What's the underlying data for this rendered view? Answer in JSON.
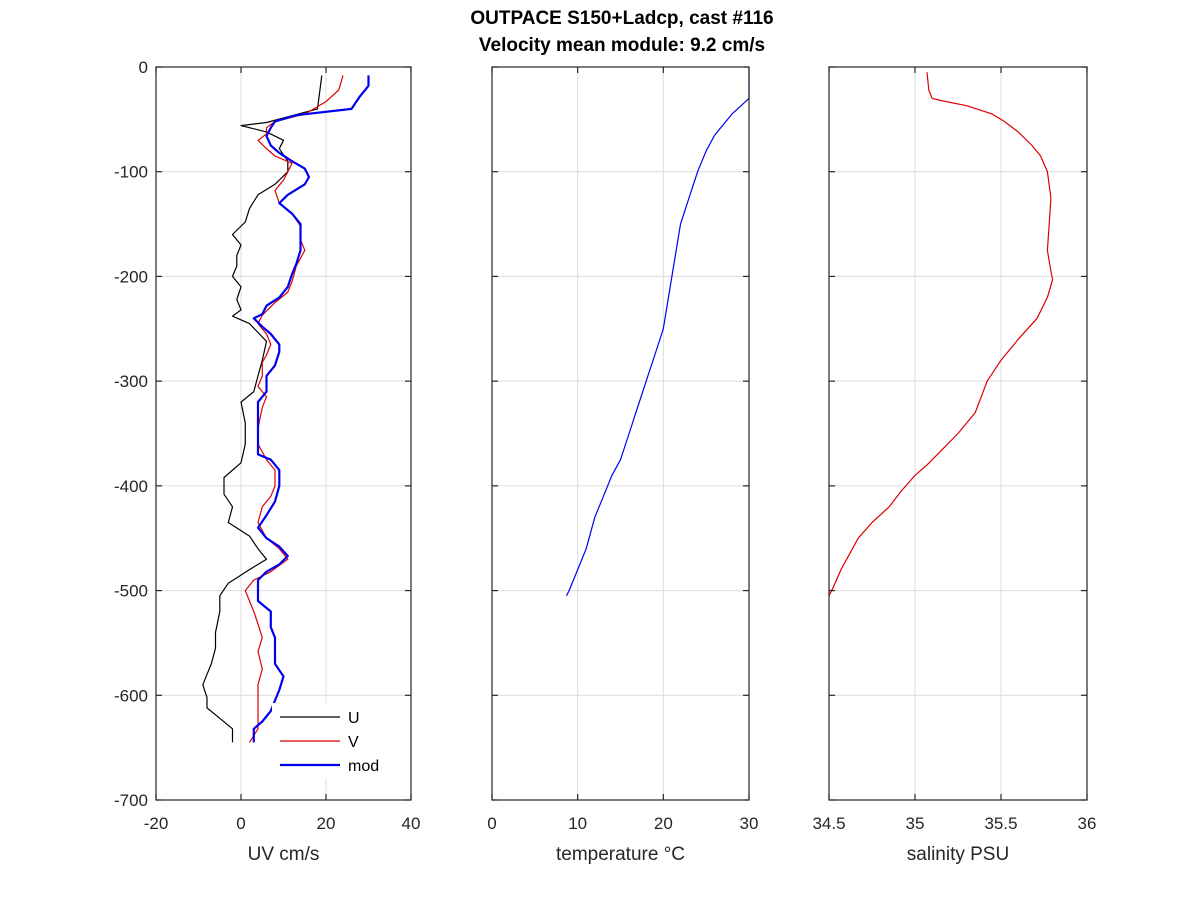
{
  "figure": {
    "title_line1": "OUTPACE S150+Ladcp, cast #116",
    "title_line2": "Velocity mean module:  9.2 cm/s"
  },
  "chart_data": [
    {
      "type": "line",
      "id": "uv",
      "xlabel": "UV cm/s",
      "ylabel": "",
      "xlim": [
        -20,
        40
      ],
      "ylim": [
        -700,
        0
      ],
      "xticks": [
        -20,
        0,
        20,
        40
      ],
      "yticks": [
        0,
        -100,
        -200,
        -300,
        -400,
        -500,
        -600,
        -700
      ],
      "show_ytick_labels": true,
      "grid": true,
      "legend": {
        "placement": "bottom-right",
        "entries": [
          "U",
          "V",
          "mod"
        ]
      },
      "series": [
        {
          "name": "U",
          "color": "#000000",
          "width": 1.2,
          "points": [
            [
              19,
              -8
            ],
            [
              18,
              -40
            ],
            [
              6,
              -53
            ],
            [
              0,
              -56
            ],
            [
              6,
              -62
            ],
            [
              10,
              -70
            ],
            [
              9,
              -78
            ],
            [
              11,
              -90
            ],
            [
              11,
              -100
            ],
            [
              8,
              -112
            ],
            [
              4,
              -122
            ],
            [
              2,
              -135
            ],
            [
              1,
              -148
            ],
            [
              -2,
              -160
            ],
            [
              0,
              -170
            ],
            [
              -1,
              -180
            ],
            [
              -1,
              -190
            ],
            [
              -2,
              -200
            ],
            [
              0,
              -210
            ],
            [
              -1,
              -222
            ],
            [
              0,
              -232
            ],
            [
              -2,
              -238
            ],
            [
              2,
              -245
            ],
            [
              6,
              -262
            ],
            [
              5,
              -280
            ],
            [
              4,
              -295
            ],
            [
              3,
              -310
            ],
            [
              0,
              -320
            ],
            [
              1,
              -340
            ],
            [
              1,
              -360
            ],
            [
              0,
              -378
            ],
            [
              -4,
              -392
            ],
            [
              -4,
              -408
            ],
            [
              -2,
              -420
            ],
            [
              -3,
              -435
            ],
            [
              2,
              -448
            ],
            [
              4,
              -460
            ],
            [
              6,
              -470
            ],
            [
              2,
              -480
            ],
            [
              -3,
              -493
            ],
            [
              -5,
              -505
            ],
            [
              -5,
              -520
            ],
            [
              -6,
              -540
            ],
            [
              -6,
              -555
            ],
            [
              -7,
              -570
            ],
            [
              -8,
              -580
            ],
            [
              -9,
              -590
            ],
            [
              -8,
              -602
            ],
            [
              -8,
              -612
            ],
            [
              -5,
              -622
            ],
            [
              -2,
              -632
            ],
            [
              -2,
              -645
            ]
          ]
        },
        {
          "name": "V",
          "color": "#dd0000",
          "width": 1.2,
          "points": [
            [
              24,
              -8
            ],
            [
              23,
              -22
            ],
            [
              20,
              -33
            ],
            [
              15,
              -45
            ],
            [
              8,
              -52
            ],
            [
              6,
              -58
            ],
            [
              6,
              -64
            ],
            [
              4,
              -70
            ],
            [
              6,
              -78
            ],
            [
              8,
              -85
            ],
            [
              12,
              -92
            ],
            [
              11,
              -100
            ],
            [
              10,
              -108
            ],
            [
              8,
              -118
            ],
            [
              9,
              -130
            ],
            [
              12,
              -140
            ],
            [
              14,
              -152
            ],
            [
              14,
              -165
            ],
            [
              15,
              -175
            ],
            [
              13,
              -190
            ],
            [
              12,
              -205
            ],
            [
              11,
              -215
            ],
            [
              8,
              -225
            ],
            [
              5,
              -237
            ],
            [
              4,
              -245
            ],
            [
              6,
              -255
            ],
            [
              7,
              -265
            ],
            [
              6,
              -275
            ],
            [
              5,
              -282
            ],
            [
              5,
              -295
            ],
            [
              4,
              -305
            ],
            [
              6,
              -315
            ],
            [
              5,
              -325
            ],
            [
              4,
              -345
            ],
            [
              4,
              -360
            ],
            [
              6,
              -375
            ],
            [
              8,
              -385
            ],
            [
              8,
              -400
            ],
            [
              7,
              -410
            ],
            [
              5,
              -420
            ],
            [
              4,
              -435
            ],
            [
              6,
              -450
            ],
            [
              9,
              -460
            ],
            [
              11,
              -470
            ],
            [
              7,
              -482
            ],
            [
              3,
              -490
            ],
            [
              1,
              -500
            ],
            [
              2,
              -510
            ],
            [
              3,
              -520
            ],
            [
              4,
              -532
            ],
            [
              5,
              -545
            ],
            [
              4,
              -558
            ],
            [
              5,
              -575
            ],
            [
              4,
              -590
            ],
            [
              4,
              -605
            ],
            [
              4,
              -620
            ],
            [
              4,
              -632
            ],
            [
              2,
              -645
            ]
          ]
        },
        {
          "name": "mod",
          "color": "#0000ee",
          "width": 2.2,
          "points": [
            [
              30,
              -8
            ],
            [
              30,
              -18
            ],
            [
              28,
              -28
            ],
            [
              26,
              -40
            ],
            [
              13,
              -46
            ],
            [
              8,
              -52
            ],
            [
              7,
              -58
            ],
            [
              6,
              -66
            ],
            [
              7,
              -75
            ],
            [
              9,
              -82
            ],
            [
              12,
              -90
            ],
            [
              15,
              -97
            ],
            [
              16,
              -105
            ],
            [
              15,
              -112
            ],
            [
              11,
              -122
            ],
            [
              9,
              -130
            ],
            [
              12,
              -140
            ],
            [
              14,
              -150
            ],
            [
              14,
              -160
            ],
            [
              14,
              -175
            ],
            [
              13,
              -188
            ],
            [
              12,
              -198
            ],
            [
              11,
              -210
            ],
            [
              9,
              -220
            ],
            [
              6,
              -228
            ],
            [
              5,
              -236
            ],
            [
              3,
              -240
            ],
            [
              5,
              -248
            ],
            [
              7,
              -255
            ],
            [
              9,
              -265
            ],
            [
              9,
              -272
            ],
            [
              8,
              -285
            ],
            [
              6,
              -295
            ],
            [
              6,
              -310
            ],
            [
              4,
              -320
            ],
            [
              4,
              -330
            ],
            [
              4,
              -350
            ],
            [
              4,
              -370
            ],
            [
              7,
              -375
            ],
            [
              9,
              -385
            ],
            [
              9,
              -400
            ],
            [
              8,
              -415
            ],
            [
              6,
              -428
            ],
            [
              4,
              -440
            ],
            [
              6,
              -450
            ],
            [
              9,
              -458
            ],
            [
              11,
              -467
            ],
            [
              9,
              -475
            ],
            [
              6,
              -482
            ],
            [
              4,
              -490
            ],
            [
              4,
              -500
            ],
            [
              4,
              -510
            ],
            [
              7,
              -520
            ],
            [
              7,
              -535
            ],
            [
              8,
              -545
            ],
            [
              8,
              -555
            ],
            [
              8,
              -570
            ],
            [
              10,
              -582
            ],
            [
              9,
              -595
            ],
            [
              8,
              -605
            ],
            [
              7,
              -615
            ],
            [
              5,
              -625
            ],
            [
              3,
              -632
            ],
            [
              3,
              -645
            ]
          ]
        }
      ]
    },
    {
      "type": "line",
      "id": "temperature",
      "xlabel": "temperature °C",
      "ylabel": "",
      "xlim": [
        0,
        30
      ],
      "ylim": [
        -700,
        0
      ],
      "xticks": [
        0,
        10,
        20,
        30
      ],
      "yticks": [
        0,
        -100,
        -200,
        -300,
        -400,
        -500,
        -600,
        -700
      ],
      "show_ytick_labels": false,
      "grid": true,
      "series": [
        {
          "color": "#0000ee",
          "width": 1.2,
          "points": [
            [
              30,
              -5
            ],
            [
              30,
              -30
            ],
            [
              28,
              -45
            ],
            [
              27,
              -55
            ],
            [
              26,
              -65
            ],
            [
              25,
              -80
            ],
            [
              24,
              -100
            ],
            [
              23,
              -125
            ],
            [
              22,
              -150
            ],
            [
              21.5,
              -175
            ],
            [
              21,
              -200
            ],
            [
              20.5,
              -225
            ],
            [
              20,
              -250
            ],
            [
              19,
              -275
            ],
            [
              18,
              -300
            ],
            [
              17,
              -325
            ],
            [
              16,
              -350
            ],
            [
              15,
              -375
            ],
            [
              14,
              -390
            ],
            [
              13,
              -410
            ],
            [
              12,
              -430
            ],
            [
              11,
              -460
            ],
            [
              10,
              -480
            ],
            [
              9.5,
              -490
            ],
            [
              9,
              -500
            ],
            [
              8.7,
              -505
            ]
          ]
        }
      ]
    },
    {
      "type": "line",
      "id": "salinity",
      "xlabel": "salinity PSU",
      "ylabel": "",
      "xlim": [
        34.5,
        36
      ],
      "ylim": [
        -700,
        0
      ],
      "xticks": [
        34.5,
        35,
        35.5,
        36
      ],
      "xtick_labels": [
        "34.5",
        "35",
        "35.5",
        "36"
      ],
      "yticks": [
        0,
        -100,
        -200,
        -300,
        -400,
        -500,
        -600,
        -700
      ],
      "show_ytick_labels": false,
      "grid": true,
      "series": [
        {
          "color": "#dd0000",
          "width": 1.2,
          "points": [
            [
              35.07,
              -5
            ],
            [
              35.08,
              -22
            ],
            [
              35.1,
              -30
            ],
            [
              35.15,
              -32
            ],
            [
              35.3,
              -37
            ],
            [
              35.45,
              -45
            ],
            [
              35.52,
              -52
            ],
            [
              35.6,
              -62
            ],
            [
              35.68,
              -75
            ],
            [
              35.73,
              -85
            ],
            [
              35.77,
              -100
            ],
            [
              35.79,
              -125
            ],
            [
              35.78,
              -150
            ],
            [
              35.77,
              -175
            ],
            [
              35.79,
              -195
            ],
            [
              35.8,
              -203
            ],
            [
              35.77,
              -220
            ],
            [
              35.71,
              -240
            ],
            [
              35.6,
              -260
            ],
            [
              35.5,
              -280
            ],
            [
              35.42,
              -300
            ],
            [
              35.35,
              -330
            ],
            [
              35.25,
              -350
            ],
            [
              35.13,
              -370
            ],
            [
              35.07,
              -380
            ],
            [
              35.0,
              -390
            ],
            [
              34.92,
              -405
            ],
            [
              34.85,
              -420
            ],
            [
              34.75,
              -435
            ],
            [
              34.67,
              -450
            ],
            [
              34.62,
              -465
            ],
            [
              34.57,
              -480
            ],
            [
              34.53,
              -495
            ],
            [
              34.5,
              -505
            ]
          ]
        }
      ]
    }
  ]
}
